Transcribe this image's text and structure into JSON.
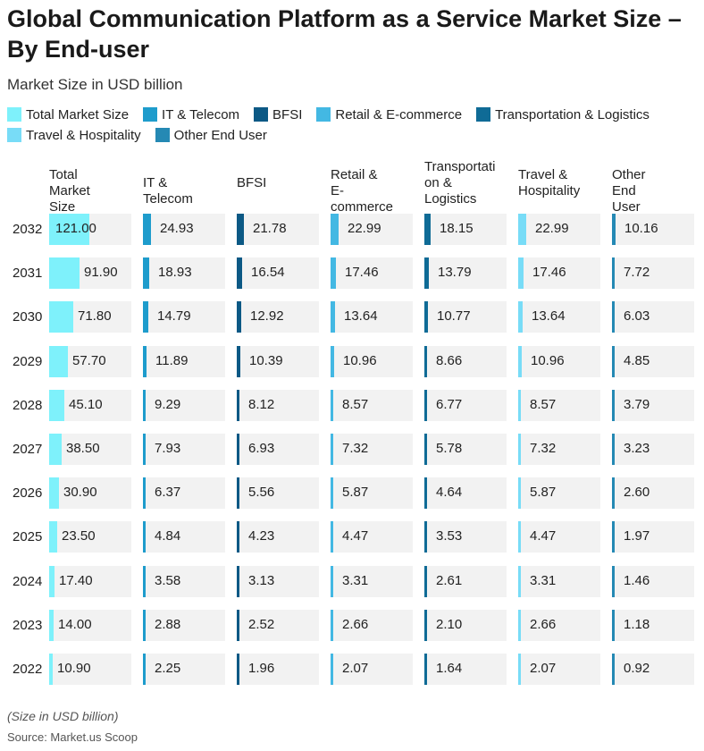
{
  "title": "Global Communication Platform as a Service Market Size – By End-user",
  "subtitle": "Market Size in USD billion",
  "note": "(Size in USD billion)",
  "source": "Source: Market.us Scoop",
  "colors": {
    "total": "#7ef1fb",
    "it": "#1e9ccc",
    "bfsi": "#0c5985",
    "retail": "#43b8e3",
    "transport": "#0f6b96",
    "travel": "#78dcf7",
    "other": "#2589b4",
    "cell_bg": "#f2f2f2"
  },
  "chart_data": {
    "type": "table",
    "title": "Global Communication Platform as a Service Market Size – By End-user",
    "subtitle": "Market Size in USD billion",
    "columns": [
      "Total Market Size",
      "IT & Telecom",
      "BFSI",
      "Retail & E-commerce",
      "Transportation & Logistics",
      "Travel & Hospitality",
      "Other End User"
    ],
    "column_headers": [
      [
        "Total Market",
        "Size"
      ],
      [
        "IT & Telecom"
      ],
      [
        "BFSI"
      ],
      [
        "Retail & E-",
        "commerce"
      ],
      [
        "Transportati",
        "on &",
        "Logistics"
      ],
      [
        "Travel &",
        "Hospitality"
      ],
      [
        "Other End",
        "User"
      ]
    ],
    "years": [
      "2032",
      "2031",
      "2030",
      "2029",
      "2028",
      "2027",
      "2026",
      "2025",
      "2024",
      "2023",
      "2022"
    ],
    "rows": [
      [
        "121.00",
        "24.93",
        "21.78",
        "22.99",
        "18.15",
        "22.99",
        "10.16"
      ],
      [
        "91.90",
        "18.93",
        "16.54",
        "17.46",
        "13.79",
        "17.46",
        "7.72"
      ],
      [
        "71.80",
        "14.79",
        "12.92",
        "13.64",
        "10.77",
        "13.64",
        "6.03"
      ],
      [
        "57.70",
        "11.89",
        "10.39",
        "10.96",
        "8.66",
        "10.96",
        "4.85"
      ],
      [
        "45.10",
        "9.29",
        "8.12",
        "8.57",
        "6.77",
        "8.57",
        "3.79"
      ],
      [
        "38.50",
        "7.93",
        "6.93",
        "7.32",
        "5.78",
        "7.32",
        "3.23"
      ],
      [
        "30.90",
        "6.37",
        "5.56",
        "5.87",
        "4.64",
        "5.87",
        "2.60"
      ],
      [
        "23.50",
        "4.84",
        "4.23",
        "4.47",
        "3.53",
        "4.47",
        "1.97"
      ],
      [
        "17.40",
        "3.58",
        "3.13",
        "3.31",
        "2.61",
        "3.31",
        "1.46"
      ],
      [
        "14.00",
        "2.88",
        "2.52",
        "2.66",
        "2.10",
        "2.66",
        "1.18"
      ],
      [
        "10.90",
        "2.25",
        "1.96",
        "2.07",
        "1.64",
        "2.07",
        "0.92"
      ]
    ],
    "series_colors": [
      "#7ef1fb",
      "#1e9ccc",
      "#0c5985",
      "#43b8e3",
      "#0f6b96",
      "#78dcf7",
      "#2589b4"
    ],
    "legend_position": "top-left",
    "bar_scale_max": [
      121,
      121,
      121,
      121,
      121,
      121,
      121
    ]
  }
}
